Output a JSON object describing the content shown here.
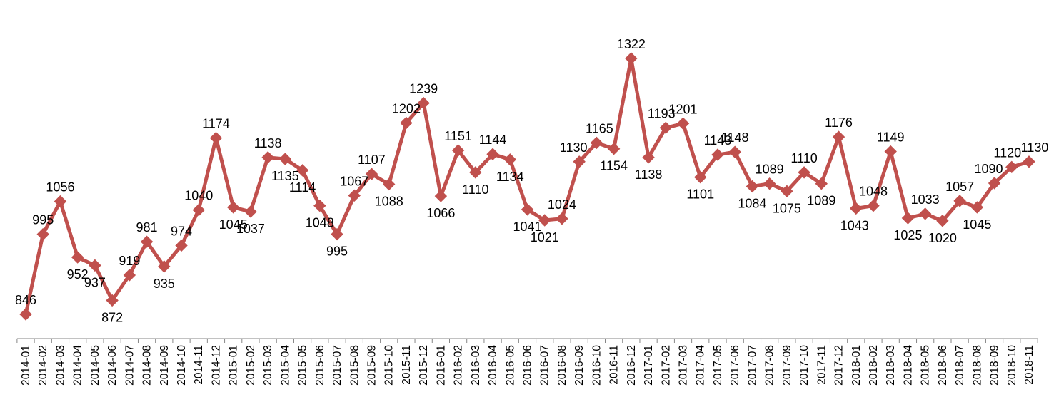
{
  "chart_data": {
    "type": "line",
    "title": "",
    "xlabel": "",
    "ylabel": "",
    "ylim": [
      780,
      1350
    ],
    "grid": false,
    "legend": "none",
    "line_color": "#C0504D",
    "categories": [
      "2014-01",
      "2014-02",
      "2014-03",
      "2014-04",
      "2014-05",
      "2014-06",
      "2014-07",
      "2014-08",
      "2014-09",
      "2014-10",
      "2014-11",
      "2014-12",
      "2015-01",
      "2015-02",
      "2015-03",
      "2015-04",
      "2015-05",
      "2015-06",
      "2015-07",
      "2015-08",
      "2015-09",
      "2015-10",
      "2015-11",
      "2015-12",
      "2016-01",
      "2016-02",
      "2016-03",
      "2016-04",
      "2016-05",
      "2016-06",
      "2016-07",
      "2016-08",
      "2016-09",
      "2016-10",
      "2016-11",
      "2016-12",
      "2017-01",
      "2017-02",
      "2017-03",
      "2017-04",
      "2017-05",
      "2017-06",
      "2017-07",
      "2017-08",
      "2017-09",
      "2017-10",
      "2017-11",
      "2017-12",
      "2018-01",
      "2018-02",
      "2018-03",
      "2018-04",
      "2018-05",
      "2018-06",
      "2018-07",
      "2018-08",
      "2018-09",
      "2018-10",
      "2018-11"
    ],
    "series": [
      {
        "values": [
          846,
          995,
          1056,
          952,
          937,
          872,
          919,
          981,
          935,
          974,
          1040,
          1174,
          1045,
          1037,
          1138,
          1135,
          1114,
          1048,
          995,
          1067,
          1107,
          1088,
          1202,
          1239,
          1066,
          1151,
          1110,
          1144,
          1134,
          1041,
          1021,
          1024,
          1130,
          1165,
          1154,
          1322,
          1138,
          1193,
          1201,
          1101,
          1143,
          1148,
          1084,
          1089,
          1075,
          1110,
          1089,
          1176,
          1043,
          1048,
          1149,
          1025,
          1033,
          1020,
          1057,
          1045,
          1090,
          1120,
          1130
        ],
        "labels": [
          "846",
          "995",
          "1056",
          "952",
          "937",
          "872",
          "919",
          "981",
          "935",
          "974",
          "1040",
          "1174",
          "1045",
          "1037",
          "1138",
          "1135",
          "1114",
          "1048",
          "995",
          "1067",
          "1107",
          "1088",
          "1202",
          "1239",
          "1066",
          "1151",
          "1110",
          "1144",
          "1134",
          "1041",
          "1021",
          "1024",
          "1130",
          "1165",
          "1154",
          "1322",
          "1138",
          "1193",
          "1201",
          "1101",
          "1143",
          "1148",
          "1084",
          "1089",
          "1075",
          "1110",
          "1089",
          "1176",
          "1043",
          "1048",
          "1149",
          "1025",
          "1033",
          "1020",
          "1057",
          "1045",
          "1090",
          "1120",
          "1130"
        ]
      }
    ]
  }
}
